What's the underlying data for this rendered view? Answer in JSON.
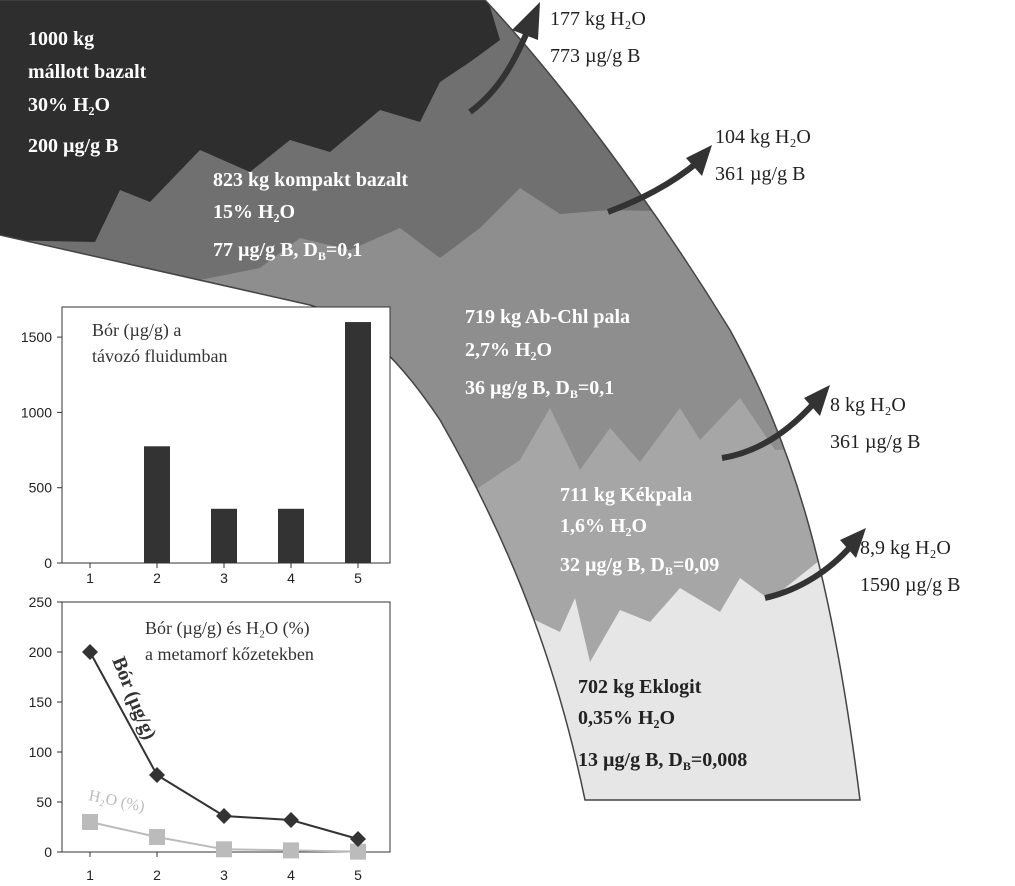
{
  "zones": [
    {
      "lines": [
        [
          "1000 kg"
        ],
        [
          "mállott bazalt"
        ],
        [
          "30% H₂O"
        ],
        [
          "200 µg/g B"
        ]
      ]
    },
    {
      "lines": [
        [
          "823 kg kompakt bazalt"
        ],
        [
          "15% H₂O"
        ],
        [
          "77 µg/g B, D",
          "B",
          "=0,1"
        ]
      ]
    },
    {
      "lines": [
        [
          "719 kg Ab-Chl pala"
        ],
        [
          "2,7% H₂O"
        ],
        [
          "36 µg/g B, D",
          "B",
          "=0,1"
        ]
      ]
    },
    {
      "lines": [
        [
          "711 kg Kékpala"
        ],
        [
          "1,6% H₂O"
        ],
        [
          "32 µg/g B, D",
          "B",
          "=0,09"
        ]
      ]
    },
    {
      "lines": [
        [
          "702 kg Eklogit"
        ],
        [
          "0,35% H₂O"
        ],
        [
          "13 µg/g B, D",
          "B",
          "=0,008"
        ]
      ]
    }
  ],
  "outflows": [
    {
      "lines": [
        "177 kg H₂O",
        "773 µg/g B"
      ]
    },
    {
      "lines": [
        "104 kg H₂O",
        "361 µg/g B"
      ]
    },
    {
      "lines": [
        "8 kg H₂O",
        "361 µg/g B"
      ]
    },
    {
      "lines": [
        "8,9 kg H₂O",
        "1590 µg/g B"
      ]
    }
  ],
  "chart_data": [
    {
      "type": "bar",
      "title": [
        "Bór (µg/g) a",
        "távozó fluidumban"
      ],
      "categories": [
        "1",
        "2",
        "3",
        "4",
        "5"
      ],
      "values": [
        0,
        775,
        360,
        360,
        1600
      ],
      "color": "#333333",
      "ylim": [
        0,
        1700
      ],
      "yticks": [
        0,
        500,
        1000,
        1500
      ]
    },
    {
      "type": "line",
      "title": [
        "Bór (µg/g) és H₂O (%)",
        "a metamorf kőzetekben"
      ],
      "categories": [
        "1",
        "2",
        "3",
        "4",
        "5"
      ],
      "series": [
        {
          "name": "Bór (µg/g)",
          "color": "#333333",
          "values": [
            200,
            77,
            36,
            32,
            13
          ]
        },
        {
          "name": "H₂O (%)",
          "color": "#bbbbbb",
          "values": [
            30,
            15,
            2.7,
            1.6,
            0.35
          ]
        }
      ],
      "ylim": [
        0,
        250
      ],
      "yticks": [
        0,
        50,
        100,
        150,
        200,
        250
      ]
    }
  ]
}
